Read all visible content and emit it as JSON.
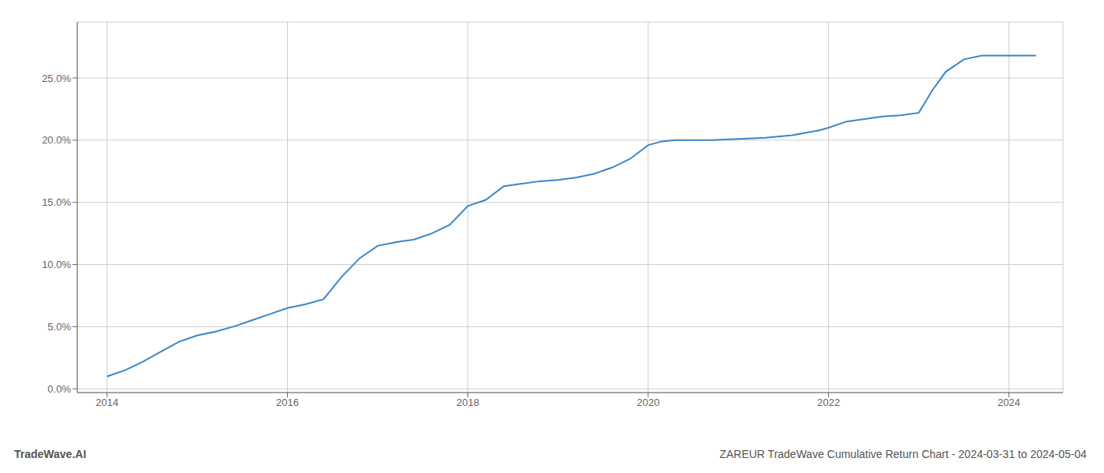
{
  "chart_data": {
    "type": "line",
    "title": "ZAREUR TradeWave Cumulative Return Chart - 2024-03-31 to 2024-05-04",
    "annotations": [
      "TradeWave.AI"
    ],
    "color": "#3a87c8",
    "grid": true,
    "x": [
      2014.0,
      2014.2,
      2014.4,
      2014.6,
      2014.8,
      2015.0,
      2015.2,
      2015.4,
      2015.6,
      2015.8,
      2016.0,
      2016.2,
      2016.4,
      2016.6,
      2016.8,
      2017.0,
      2017.2,
      2017.4,
      2017.6,
      2017.8,
      2018.0,
      2018.2,
      2018.4,
      2018.6,
      2018.8,
      2019.0,
      2019.2,
      2019.4,
      2019.6,
      2019.8,
      2020.0,
      2020.15,
      2020.3,
      2020.5,
      2020.7,
      2021.0,
      2021.3,
      2021.6,
      2021.9,
      2022.0,
      2022.2,
      2022.4,
      2022.6,
      2022.8,
      2023.0,
      2023.05,
      2023.15,
      2023.3,
      2023.5,
      2023.7,
      2024.0,
      2024.3
    ],
    "values": [
      0.01,
      0.015,
      0.022,
      0.03,
      0.038,
      0.043,
      0.046,
      0.05,
      0.055,
      0.06,
      0.065,
      0.068,
      0.072,
      0.09,
      0.105,
      0.115,
      0.118,
      0.12,
      0.125,
      0.132,
      0.147,
      0.152,
      0.163,
      0.165,
      0.167,
      0.168,
      0.17,
      0.173,
      0.178,
      0.185,
      0.196,
      0.199,
      0.2,
      0.2,
      0.2,
      0.201,
      0.202,
      0.204,
      0.208,
      0.21,
      0.215,
      0.217,
      0.219,
      0.22,
      0.222,
      0.228,
      0.24,
      0.255,
      0.265,
      0.268,
      0.268,
      0.268
    ],
    "xlim": [
      2013.67,
      2024.6
    ],
    "ylim": [
      -0.003,
      0.295
    ],
    "xticks": [
      2014,
      2016,
      2018,
      2020,
      2022,
      2024
    ],
    "yticks": [
      {
        "value": 0.0,
        "label": "0.0%"
      },
      {
        "value": 0.05,
        "label": "5.0%"
      },
      {
        "value": 0.1,
        "label": "10.0%"
      },
      {
        "value": 0.15,
        "label": "15.0%"
      },
      {
        "value": 0.2,
        "label": "20.0%"
      },
      {
        "value": 0.25,
        "label": "25.0%"
      }
    ]
  }
}
